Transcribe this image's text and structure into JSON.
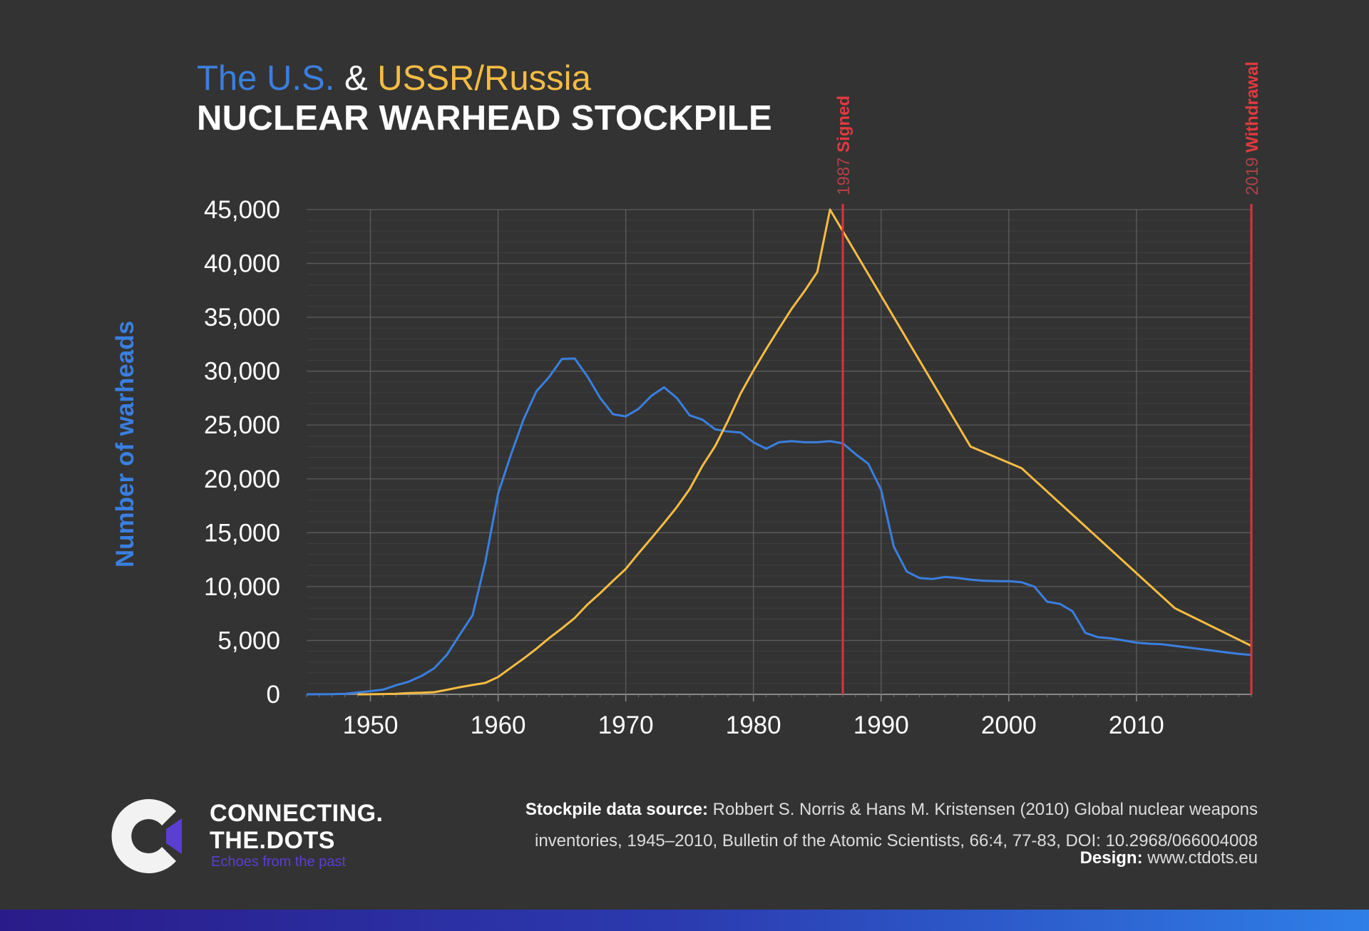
{
  "header": {
    "us_label": "The U.S.",
    "amp": "&",
    "ussr_label": "USSR/Russia",
    "subtitle": "NUCLEAR WARHEAD STOCKPILE"
  },
  "colors": {
    "us": "#3a7fe0",
    "ussr": "#f5bc42",
    "event": "#d9353a",
    "grid": "#5c5c5c",
    "background": "#333333"
  },
  "chart_data": {
    "type": "line",
    "ylabel": "Number of warheads",
    "xlim": [
      1945,
      2019
    ],
    "ylim": [
      0,
      45000
    ],
    "x_ticks": [
      "1950",
      "1960",
      "1970",
      "1980",
      "1990",
      "2000",
      "2010"
    ],
    "y_ticks": [
      "0",
      "5,000",
      "10,000",
      "15,000",
      "20,000",
      "25,000",
      "30,000",
      "35,000",
      "40,000",
      "45,000"
    ],
    "grid": true,
    "series": [
      {
        "name": "The U.S.",
        "color": "#3a7fe0",
        "points": [
          [
            1945,
            2
          ],
          [
            1946,
            9
          ],
          [
            1947,
            13
          ],
          [
            1948,
            50
          ],
          [
            1949,
            170
          ],
          [
            1950,
            299
          ],
          [
            1951,
            438
          ],
          [
            1952,
            841
          ],
          [
            1953,
            1169
          ],
          [
            1954,
            1703
          ],
          [
            1955,
            2422
          ],
          [
            1956,
            3692
          ],
          [
            1957,
            5543
          ],
          [
            1958,
            7345
          ],
          [
            1959,
            12298
          ],
          [
            1960,
            18638
          ],
          [
            1961,
            22229
          ],
          [
            1962,
            25540
          ],
          [
            1963,
            28133
          ],
          [
            1964,
            29463
          ],
          [
            1965,
            31139
          ],
          [
            1966,
            31175
          ],
          [
            1967,
            29500
          ],
          [
            1968,
            27500
          ],
          [
            1969,
            26000
          ],
          [
            1970,
            25800
          ],
          [
            1971,
            26500
          ],
          [
            1972,
            27700
          ],
          [
            1973,
            28500
          ],
          [
            1974,
            27500
          ],
          [
            1975,
            25900
          ],
          [
            1976,
            25500
          ],
          [
            1977,
            24600
          ],
          [
            1978,
            24400
          ],
          [
            1979,
            24300
          ],
          [
            1980,
            23400
          ],
          [
            1981,
            22800
          ],
          [
            1982,
            23400
          ],
          [
            1983,
            23500
          ],
          [
            1984,
            23400
          ],
          [
            1985,
            23400
          ],
          [
            1986,
            23500
          ],
          [
            1987,
            23300
          ],
          [
            1988,
            22300
          ],
          [
            1989,
            21400
          ],
          [
            1990,
            19000
          ],
          [
            1991,
            13700
          ],
          [
            1992,
            11400
          ],
          [
            1993,
            10800
          ],
          [
            1994,
            10700
          ],
          [
            1995,
            10900
          ],
          [
            1996,
            10800
          ],
          [
            1997,
            10650
          ],
          [
            1998,
            10550
          ],
          [
            1999,
            10500
          ],
          [
            2000,
            10500
          ],
          [
            2001,
            10400
          ],
          [
            2002,
            10000
          ],
          [
            2003,
            8600
          ],
          [
            2004,
            8400
          ],
          [
            2005,
            7700
          ],
          [
            2006,
            5700
          ],
          [
            2007,
            5300
          ],
          [
            2008,
            5200
          ],
          [
            2009,
            5000
          ],
          [
            2010,
            4800
          ],
          [
            2011,
            4700
          ],
          [
            2012,
            4650
          ],
          [
            2013,
            4500
          ],
          [
            2014,
            4350
          ],
          [
            2015,
            4200
          ],
          [
            2016,
            4050
          ],
          [
            2017,
            3900
          ],
          [
            2018,
            3750
          ],
          [
            2019,
            3650
          ]
        ]
      },
      {
        "name": "USSR/Russia",
        "color": "#f5bc42",
        "points": [
          [
            1949,
            1
          ],
          [
            1950,
            5
          ],
          [
            1951,
            25
          ],
          [
            1952,
            50
          ],
          [
            1953,
            120
          ],
          [
            1954,
            150
          ],
          [
            1955,
            200
          ],
          [
            1956,
            426
          ],
          [
            1957,
            660
          ],
          [
            1958,
            869
          ],
          [
            1959,
            1060
          ],
          [
            1960,
            1605
          ],
          [
            1961,
            2471
          ],
          [
            1962,
            3322
          ],
          [
            1963,
            4238
          ],
          [
            1964,
            5221
          ],
          [
            1965,
            6129
          ],
          [
            1966,
            7089
          ],
          [
            1967,
            8339
          ],
          [
            1968,
            9399
          ],
          [
            1969,
            10538
          ],
          [
            1970,
            11643
          ],
          [
            1971,
            13092
          ],
          [
            1972,
            14478
          ],
          [
            1973,
            15915
          ],
          [
            1974,
            17385
          ],
          [
            1975,
            19055
          ],
          [
            1976,
            21205
          ],
          [
            1977,
            23044
          ],
          [
            1978,
            25393
          ],
          [
            1979,
            27935
          ],
          [
            1980,
            30062
          ],
          [
            1981,
            32049
          ],
          [
            1982,
            33952
          ],
          [
            1983,
            35804
          ],
          [
            1984,
            37431
          ],
          [
            1985,
            39197
          ],
          [
            1986,
            45000
          ],
          [
            1987,
            43000
          ],
          [
            1997,
            23000
          ],
          [
            2001,
            21000
          ],
          [
            2013,
            8000
          ],
          [
            2019,
            4500
          ]
        ]
      }
    ],
    "events": [
      {
        "year": 1987,
        "year_label": "1987",
        "label": "Signed"
      },
      {
        "year": 2019,
        "year_label": "2019",
        "label": "Withdrawal"
      }
    ]
  },
  "footer": {
    "brand_line1": "CONNECTING.",
    "brand_line2": "THE.DOTS",
    "tagline": "Echoes from the past",
    "source_bold": "Stockpile data source:",
    "source_text": " Robbert S. Norris & Hans M. Kristensen (2010) Global nuclear weapons inventories, 1945–2010, Bulletin of the Atomic Scientists, 66:4, 77-83, DOI: 10.2968/066004008",
    "design_bold": "Design:",
    "design_text": " www.ctdots.eu"
  }
}
